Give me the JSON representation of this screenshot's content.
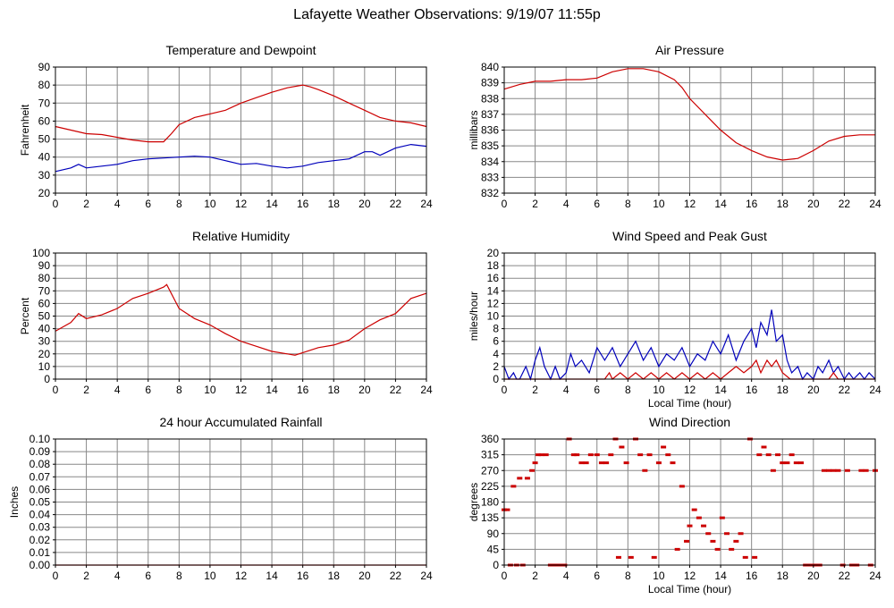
{
  "page": {
    "title": "Lafayette Weather Observations: 9/19/07 11:55p"
  },
  "colors": {
    "red": "#cc0000",
    "blue": "#0000bb",
    "grid": "#888888",
    "frame": "#000000"
  },
  "chart_data": [
    {
      "id": "temp",
      "type": "line",
      "title": "Temperature and Dewpoint",
      "xlabel": "",
      "ylabel": "Fahrenheit",
      "xlim": [
        0,
        24
      ],
      "ylim": [
        20,
        90
      ],
      "xticks": [
        0,
        2,
        4,
        6,
        8,
        10,
        12,
        14,
        16,
        18,
        20,
        22,
        24
      ],
      "yticks": [
        20,
        30,
        40,
        50,
        60,
        70,
        80,
        90
      ],
      "series": [
        {
          "color": "red",
          "x": [
            0,
            1,
            2,
            3,
            4,
            5,
            6,
            7,
            7.5,
            8,
            9,
            10,
            11,
            12,
            13,
            14,
            15,
            16,
            16.5,
            17,
            18,
            19,
            20,
            21,
            22,
            23,
            24
          ],
          "y": [
            57,
            55,
            53,
            52.5,
            51,
            49.5,
            48.5,
            48.5,
            53,
            58,
            62,
            64,
            66,
            70,
            73,
            76,
            78.5,
            80,
            79,
            77.5,
            74,
            70,
            66,
            62,
            60,
            59,
            57
          ]
        },
        {
          "color": "blue",
          "x": [
            0,
            1,
            1.5,
            2,
            3,
            4,
            5,
            6,
            7,
            8,
            9,
            10,
            11,
            12,
            13,
            14,
            15,
            16,
            17,
            18,
            19,
            20,
            20.5,
            21,
            22,
            23,
            24
          ],
          "y": [
            32,
            34,
            36,
            34,
            35,
            36,
            38,
            39,
            39.5,
            40,
            40.5,
            40,
            38,
            36,
            36.5,
            35,
            34,
            35,
            37,
            38,
            39,
            43,
            43,
            41,
            45,
            47,
            46
          ]
        }
      ]
    },
    {
      "id": "pressure",
      "type": "line",
      "title": "Air Pressure",
      "xlabel": "",
      "ylabel": "millibars",
      "xlim": [
        0,
        24
      ],
      "ylim": [
        832,
        840
      ],
      "xticks": [
        0,
        2,
        4,
        6,
        8,
        10,
        12,
        14,
        16,
        18,
        20,
        22,
        24
      ],
      "yticks": [
        832,
        833,
        834,
        835,
        836,
        837,
        838,
        839,
        840
      ],
      "series": [
        {
          "color": "red",
          "x": [
            0,
            1,
            2,
            3,
            4,
            5,
            6,
            7,
            8,
            9,
            10,
            11,
            11.5,
            12,
            13,
            14,
            15,
            16,
            17,
            18,
            19,
            20,
            21,
            22,
            23,
            24
          ],
          "y": [
            838.6,
            838.9,
            839.1,
            839.1,
            839.2,
            839.2,
            839.3,
            839.7,
            839.9,
            839.9,
            839.7,
            839.2,
            838.7,
            838.0,
            837.0,
            836.0,
            835.2,
            834.7,
            834.3,
            834.1,
            834.2,
            834.7,
            835.3,
            835.6,
            835.7,
            835.7
          ]
        }
      ]
    },
    {
      "id": "humidity",
      "type": "line",
      "title": "Relative Humidity",
      "xlabel": "",
      "ylabel": "Percent",
      "xlim": [
        0,
        24
      ],
      "ylim": [
        0,
        100
      ],
      "xticks": [
        0,
        2,
        4,
        6,
        8,
        10,
        12,
        14,
        16,
        18,
        20,
        22,
        24
      ],
      "yticks": [
        0,
        10,
        20,
        30,
        40,
        50,
        60,
        70,
        80,
        90,
        100
      ],
      "series": [
        {
          "color": "red",
          "x": [
            0,
            1,
            1.5,
            2,
            3,
            4,
            5,
            6,
            7,
            7.2,
            8,
            9,
            10,
            11,
            12,
            13,
            14,
            15,
            15.5,
            16,
            17,
            18,
            19,
            20,
            21,
            22,
            23,
            24
          ],
          "y": [
            38,
            45,
            52,
            48,
            51,
            56,
            64,
            68,
            73,
            75,
            56,
            48,
            43,
            36,
            30,
            26,
            22,
            20,
            19,
            21,
            25,
            27,
            31,
            40,
            47,
            52,
            64,
            68
          ]
        }
      ]
    },
    {
      "id": "wind",
      "type": "line",
      "title": "Wind Speed and Peak Gust",
      "xlabel": "Local Time (hour)",
      "ylabel": "miles/hour",
      "xlim": [
        0,
        24
      ],
      "ylim": [
        0,
        20
      ],
      "xticks": [
        0,
        2,
        4,
        6,
        8,
        10,
        12,
        14,
        16,
        18,
        20,
        22,
        24
      ],
      "yticks": [
        0,
        2,
        4,
        6,
        8,
        10,
        12,
        14,
        16,
        18,
        20
      ],
      "series": [
        {
          "color": "blue",
          "x": [
            0,
            0.3,
            0.6,
            0.8,
            1,
            1.4,
            1.7,
            2,
            2.3,
            2.6,
            3,
            3.3,
            3.6,
            4,
            4.3,
            4.6,
            5,
            5.5,
            6,
            6.5,
            7,
            7.5,
            8,
            8.5,
            9,
            9.5,
            10,
            10.5,
            11,
            11.5,
            12,
            12.5,
            13,
            13.5,
            14,
            14.5,
            15,
            15.5,
            16,
            16.3,
            16.6,
            17,
            17.3,
            17.6,
            18,
            18.3,
            18.6,
            19,
            19.3,
            19.6,
            20,
            20.3,
            20.6,
            21,
            21.3,
            21.6,
            22,
            22.3,
            22.6,
            23,
            23.3,
            23.6,
            24
          ],
          "y": [
            2,
            0,
            1,
            0,
            0,
            2,
            0,
            3,
            5,
            2,
            0,
            2,
            0,
            1,
            4,
            2,
            3,
            1,
            5,
            3,
            5,
            2,
            4,
            6,
            3,
            5,
            2,
            4,
            3,
            5,
            2,
            4,
            3,
            6,
            4,
            7,
            3,
            6,
            8,
            5,
            9,
            7,
            11,
            6,
            7,
            3,
            1,
            2,
            0,
            1,
            0,
            2,
            1,
            3,
            1,
            2,
            0,
            1,
            0,
            1,
            0,
            1,
            0
          ]
        },
        {
          "color": "red",
          "x": [
            0,
            6.5,
            6.8,
            7,
            7.5,
            8,
            8.5,
            9,
            9.5,
            10,
            10.5,
            11,
            11.5,
            12,
            12.5,
            13,
            13.5,
            14,
            14.5,
            15,
            15.5,
            16,
            16.3,
            16.6,
            17,
            17.3,
            17.6,
            18,
            18.5,
            19,
            21,
            21.3,
            21.6,
            22,
            24
          ],
          "y": [
            0,
            0,
            1,
            0,
            1,
            0,
            1,
            0,
            1,
            0,
            1,
            0,
            1,
            0,
            1,
            0,
            1,
            0,
            1,
            2,
            1,
            2,
            3,
            1,
            3,
            2,
            3,
            1,
            0,
            0,
            0,
            1,
            0,
            0,
            0
          ]
        }
      ]
    },
    {
      "id": "rain",
      "type": "line",
      "title": "24 hour Accumulated Rainfall",
      "xlabel": "",
      "ylabel": "Inches",
      "xlim": [
        0,
        24
      ],
      "ylim": [
        0,
        0.1
      ],
      "xticks": [
        0,
        2,
        4,
        6,
        8,
        10,
        12,
        14,
        16,
        18,
        20,
        22,
        24
      ],
      "yticks": [
        "0.00",
        "0.01",
        "0.02",
        "0.03",
        "0.04",
        "0.05",
        "0.06",
        "0.07",
        "0.08",
        "0.09",
        "0.10"
      ],
      "series": [
        {
          "color": "red",
          "x": [
            0,
            24
          ],
          "y": [
            0,
            0
          ]
        }
      ]
    },
    {
      "id": "direction",
      "type": "scatter",
      "title": "Wind Direction",
      "xlabel": "Local Time (hour)",
      "ylabel": "degrees",
      "xlim": [
        0,
        24
      ],
      "ylim": [
        0,
        360
      ],
      "xticks": [
        0,
        2,
        4,
        6,
        8,
        10,
        12,
        14,
        16,
        18,
        20,
        22,
        24
      ],
      "yticks": [
        0,
        45,
        90,
        135,
        180,
        225,
        270,
        315,
        360
      ],
      "series": [
        {
          "color": "red",
          "x": [
            0,
            0.2,
            0.4,
            0.6,
            0.8,
            1.0,
            1.2,
            1.5,
            1.8,
            2.0,
            2.2,
            2.4,
            2.7,
            3.0,
            3.3,
            3.6,
            3.9,
            4.2,
            4.5,
            4.7,
            5.0,
            5.3,
            5.6,
            6.0,
            6.3,
            6.6,
            6.9,
            7.2,
            7.4,
            7.6,
            7.9,
            8.2,
            8.5,
            8.8,
            9.1,
            9.4,
            9.7,
            10.0,
            10.3,
            10.6,
            10.9,
            11.2,
            11.5,
            11.8,
            12.0,
            12.3,
            12.6,
            12.9,
            13.2,
            13.5,
            13.8,
            14.1,
            14.4,
            14.7,
            15.0,
            15.3,
            15.6,
            15.9,
            16.2,
            16.5,
            16.8,
            17.1,
            17.4,
            17.7,
            18.0,
            18.3,
            18.6,
            18.9,
            19.2,
            19.5,
            19.8,
            20.1,
            20.4,
            20.7,
            21.0,
            21.3,
            21.6,
            21.9,
            22.2,
            22.5,
            22.8,
            23.1,
            23.4,
            23.7,
            24.0
          ],
          "y": [
            158,
            158,
            0,
            225,
            0,
            248,
            0,
            248,
            270,
            292,
            315,
            315,
            315,
            0,
            0,
            0,
            0,
            360,
            315,
            315,
            292,
            292,
            315,
            315,
            292,
            292,
            315,
            360,
            22,
            337,
            292,
            22,
            360,
            315,
            270,
            315,
            22,
            292,
            337,
            315,
            292,
            45,
            225,
            68,
            112,
            158,
            135,
            112,
            90,
            68,
            45,
            135,
            90,
            45,
            68,
            90,
            22,
            360,
            22,
            315,
            337,
            315,
            270,
            315,
            292,
            292,
            315,
            292,
            292,
            0,
            0,
            0,
            0,
            270,
            270,
            270,
            270,
            0,
            270,
            0,
            0,
            270,
            270,
            0,
            270
          ]
        }
      ]
    }
  ]
}
